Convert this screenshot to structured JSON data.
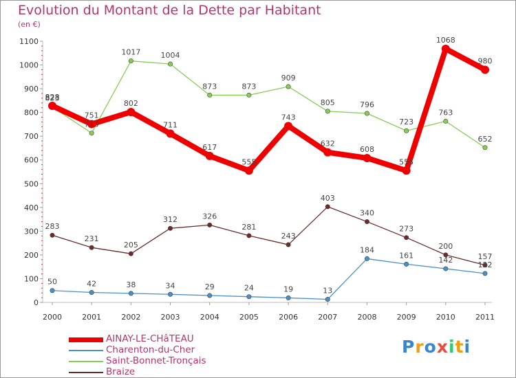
{
  "chart_data": {
    "type": "line",
    "title": "Evolution du Montant de la Dette par Habitant",
    "subtitle": "(en €)",
    "x": [
      "2000",
      "2001",
      "2002",
      "2003",
      "2004",
      "2005",
      "2006",
      "2007",
      "2008",
      "2009",
      "2010",
      "2011"
    ],
    "ylim": [
      0,
      1100
    ],
    "yticks": [
      0,
      100,
      200,
      300,
      400,
      500,
      600,
      700,
      800,
      900,
      1000,
      1100
    ],
    "grid": false,
    "legend_position": "bottom-left",
    "series": [
      {
        "name": "AINAY-LE-CHâTEAU",
        "color": "#ee0000",
        "values": [
          828,
          751,
          802,
          711,
          617,
          555,
          743,
          632,
          608,
          555,
          1068,
          980
        ]
      },
      {
        "name": "Charenton-du-Cher",
        "color": "#4a90c8",
        "values": [
          50,
          42,
          38,
          34,
          29,
          24,
          19,
          13,
          184,
          161,
          142,
          122
        ]
      },
      {
        "name": "Saint-Bonnet-Tronçais",
        "color": "#88cc55",
        "values": [
          823,
          713,
          1017,
          1004,
          873,
          873,
          909,
          805,
          796,
          723,
          763,
          652
        ]
      },
      {
        "name": "Braize",
        "color": "#6b2b2b",
        "values": [
          283,
          231,
          205,
          312,
          326,
          281,
          243,
          403,
          340,
          273,
          200,
          157
        ]
      }
    ],
    "data_labels": [
      {
        "series": 0,
        "values": [
          828,
          751,
          802,
          711,
          617,
          555,
          743,
          632,
          608,
          555,
          1068,
          980
        ]
      },
      {
        "series": 1,
        "values": [
          50,
          42,
          38,
          34,
          29,
          24,
          19,
          13,
          184,
          161,
          142,
          122
        ]
      },
      {
        "series": 2,
        "values": [
          823,
          713,
          1017,
          1004,
          873,
          873,
          909,
          805,
          796,
          723,
          763,
          652
        ]
      },
      {
        "series": 3,
        "values": [
          283,
          231,
          205,
          312,
          326,
          281,
          243,
          403,
          340,
          273,
          200,
          157
        ]
      }
    ]
  },
  "logo": {
    "letters": [
      "P",
      "r",
      "o",
      "x",
      "i",
      "t",
      "i"
    ],
    "colors": [
      "#3a86c8",
      "#f39c12",
      "#3a86c8",
      "#e74c3c",
      "#2ecc71",
      "#f39c12",
      "#3a86c8"
    ]
  }
}
